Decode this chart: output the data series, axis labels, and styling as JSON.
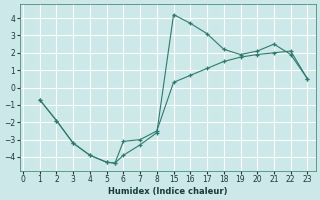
{
  "xlabel": "Humidex (Indice chaleur)",
  "bg_color": "#cce8e8",
  "grid_color": "#ffffff",
  "line_color": "#2d7b6e",
  "xtick_labels": [
    "0",
    "1",
    "2",
    "3",
    "4",
    "5",
    "6",
    "7",
    "8",
    "15",
    "16",
    "17",
    "18",
    "19",
    "20",
    "21",
    "22",
    "23"
  ],
  "yticks": [
    -4,
    -3,
    -2,
    -1,
    0,
    1,
    2,
    3,
    4
  ],
  "series1_xi": [
    1,
    2,
    3,
    4,
    5,
    5.5,
    6,
    7,
    8,
    9,
    10,
    11,
    12,
    13,
    14,
    15,
    16,
    17
  ],
  "series1_y": [
    -0.7,
    -1.9,
    -3.2,
    -3.9,
    -4.3,
    -4.35,
    -3.9,
    -3.3,
    -2.6,
    4.2,
    3.7,
    3.1,
    2.2,
    1.9,
    2.1,
    2.5,
    1.9,
    0.5
  ],
  "series2_xi": [
    1,
    2,
    3,
    4,
    5,
    5.5,
    6,
    7,
    8,
    9,
    10,
    11,
    12,
    13,
    14,
    15,
    16,
    17
  ],
  "series2_y": [
    -0.7,
    -1.9,
    -3.2,
    -3.9,
    -4.3,
    -4.35,
    -3.1,
    -3.0,
    -2.5,
    0.3,
    0.7,
    1.1,
    1.5,
    1.75,
    1.9,
    2.0,
    2.1,
    0.5
  ],
  "xlim": [
    -0.2,
    17.5
  ],
  "ylim": [
    -4.8,
    4.8
  ]
}
